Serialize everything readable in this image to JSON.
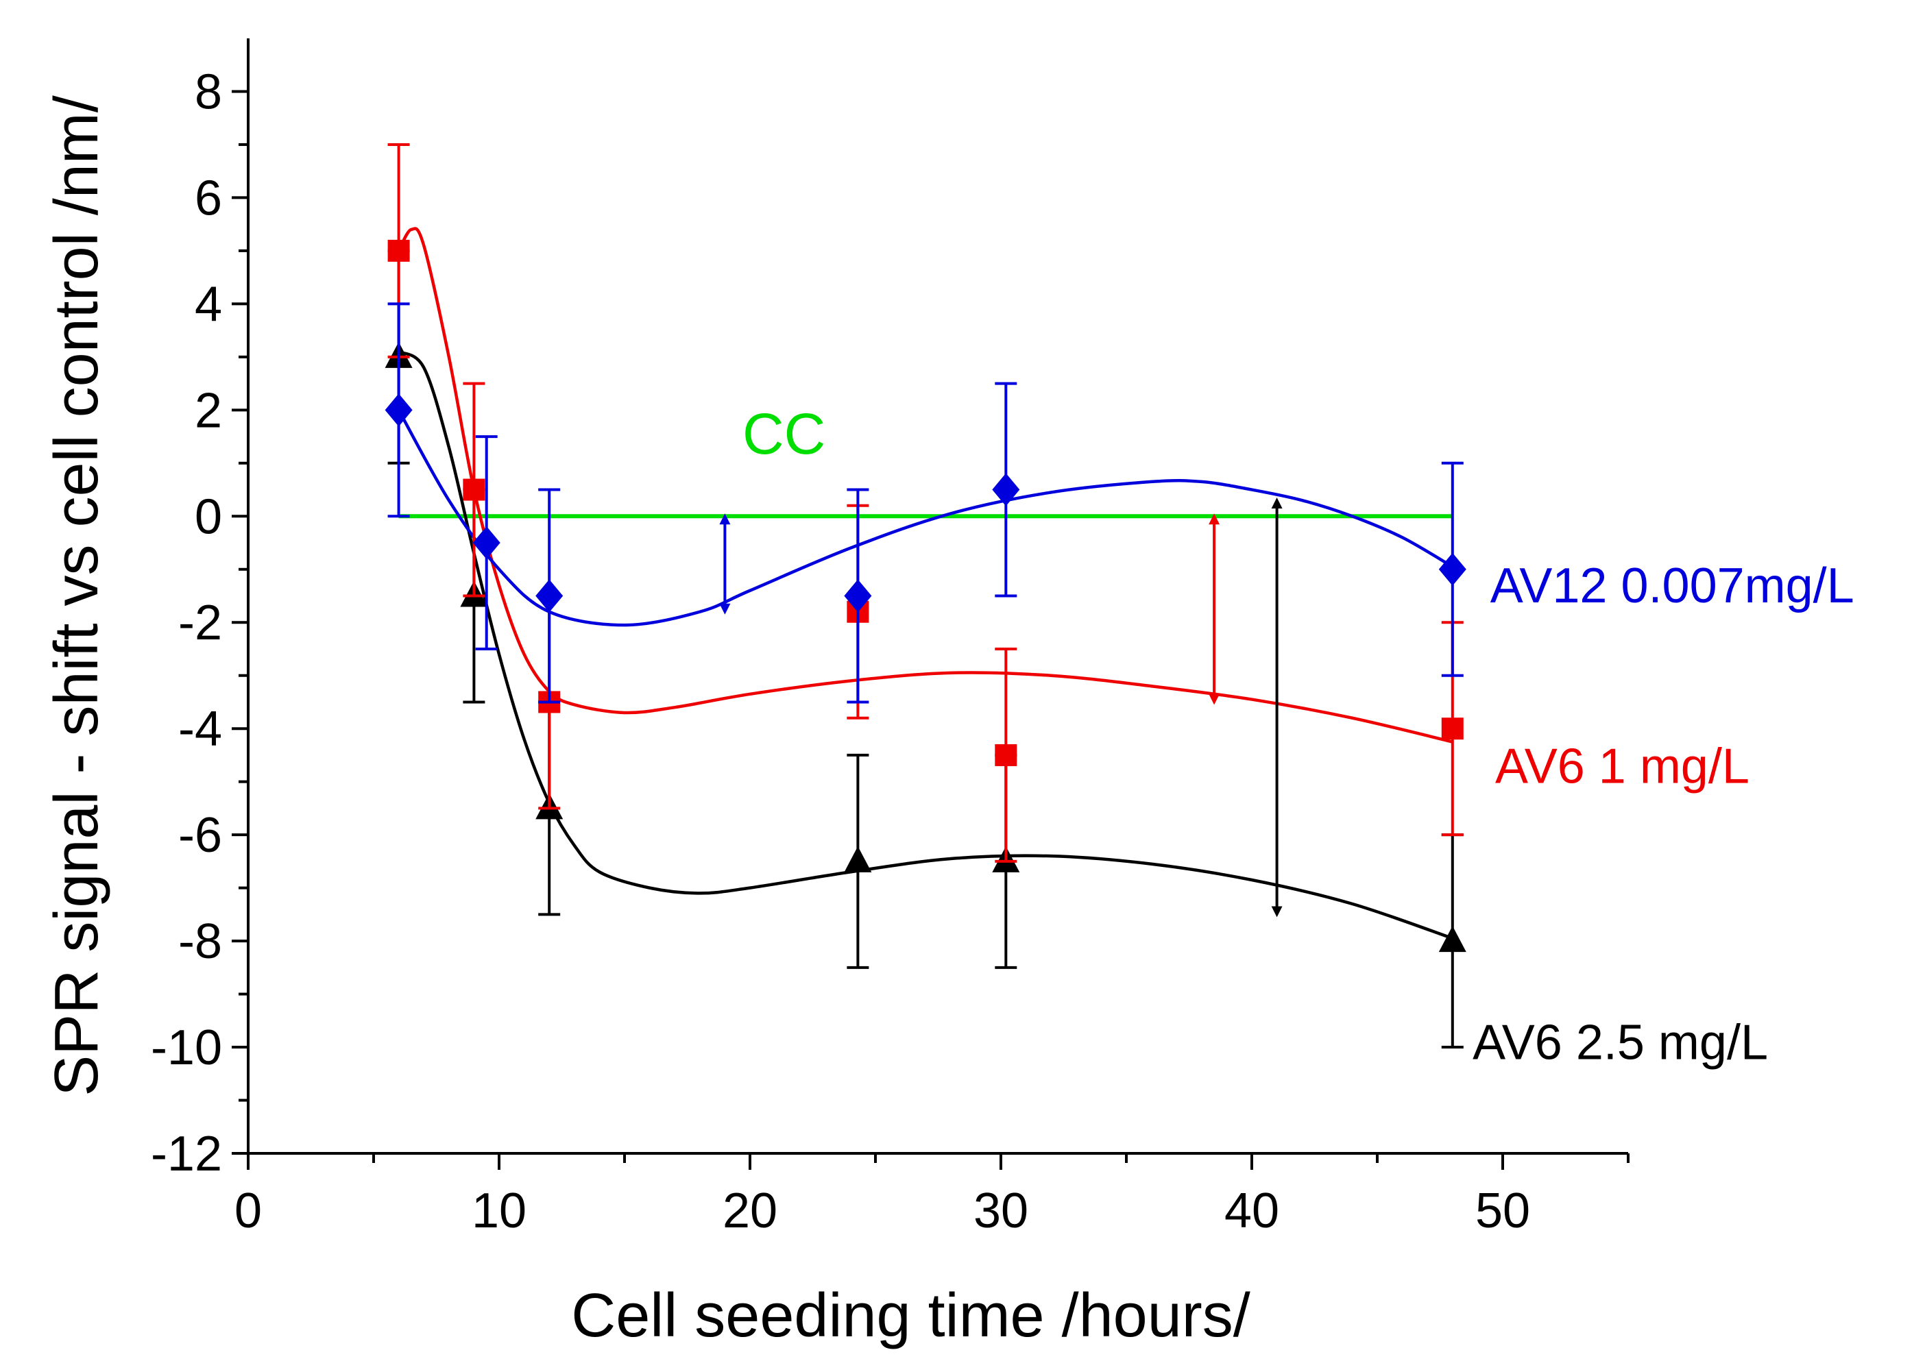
{
  "chart_data": {
    "type": "scatter",
    "xlabel": "Cell seeding time /hours/",
    "ylabel": "SPR signal - shift vs cell control /nm/",
    "xlim": [
      0,
      55
    ],
    "ylim": [
      -12,
      9
    ],
    "x_ticks": [
      0,
      10,
      20,
      30,
      40,
      50
    ],
    "y_ticks": [
      8,
      6,
      4,
      2,
      0,
      -2,
      -4,
      -6,
      -8,
      -10,
      -12
    ],
    "grid": false,
    "series": [
      {
        "name": "AV12 0.007mg/L",
        "color": "#0000dd",
        "marker": "diamond",
        "points": [
          {
            "x": 6,
            "y": 2,
            "err_low": 0,
            "err_high": 4
          },
          {
            "x": 9.5,
            "y": -0.5,
            "err_low": -2.5,
            "err_high": 1.5
          },
          {
            "x": 12,
            "y": -1.5,
            "err_low": -3.5,
            "err_high": 0.5
          },
          {
            "x": 24.3,
            "y": -1.5,
            "err_low": -3.5,
            "err_high": 0.5
          },
          {
            "x": 30.2,
            "y": 0.5,
            "err_low": -1.5,
            "err_high": 2.5
          },
          {
            "x": 48,
            "y": -1,
            "err_low": -3,
            "err_high": 1
          }
        ],
        "fit": [
          [
            6,
            2
          ],
          [
            8,
            0.3
          ],
          [
            10,
            -1
          ],
          [
            12,
            -1.8
          ],
          [
            15,
            -2.05
          ],
          [
            18,
            -1.8
          ],
          [
            20,
            -1.4
          ],
          [
            24,
            -0.6
          ],
          [
            28,
            0.05
          ],
          [
            32,
            0.45
          ],
          [
            36,
            0.65
          ],
          [
            38,
            0.65
          ],
          [
            40,
            0.5
          ],
          [
            42,
            0.3
          ],
          [
            44,
            0
          ],
          [
            46,
            -0.4
          ],
          [
            48,
            -0.95
          ]
        ]
      },
      {
        "name": "AV6 1 mg/L",
        "color": "#ee0000",
        "marker": "square",
        "points": [
          {
            "x": 6,
            "y": 5,
            "err_low": 3,
            "err_high": 7
          },
          {
            "x": 9,
            "y": 0.5,
            "err_low": -1.5,
            "err_high": 2.5
          },
          {
            "x": 12,
            "y": -3.5,
            "err_low": -5.5,
            "err_high": -1.5
          },
          {
            "x": 24.3,
            "y": -1.8,
            "err_low": -3.8,
            "err_high": 0.2
          },
          {
            "x": 30.2,
            "y": -4.5,
            "err_low": -6.5,
            "err_high": -2.5
          },
          {
            "x": 48,
            "y": -4,
            "err_low": -6,
            "err_high": -2
          }
        ],
        "fit": [
          [
            6,
            5
          ],
          [
            6.5,
            5.4
          ],
          [
            7,
            5.1
          ],
          [
            8,
            3
          ],
          [
            9,
            0.5
          ],
          [
            10,
            -1.3
          ],
          [
            11,
            -2.6
          ],
          [
            12,
            -3.3
          ],
          [
            13,
            -3.55
          ],
          [
            15,
            -3.7
          ],
          [
            17,
            -3.6
          ],
          [
            20,
            -3.35
          ],
          [
            24,
            -3.1
          ],
          [
            28,
            -2.95
          ],
          [
            32,
            -3
          ],
          [
            36,
            -3.2
          ],
          [
            40,
            -3.45
          ],
          [
            44,
            -3.8
          ],
          [
            48,
            -4.25
          ]
        ]
      },
      {
        "name": "AV6 2.5 mg/L",
        "color": "#000000",
        "marker": "triangle",
        "points": [
          {
            "x": 6,
            "y": 3,
            "err_low": 1,
            "err_high": 5
          },
          {
            "x": 9,
            "y": -1.5,
            "err_low": -3.5,
            "err_high": 0.5
          },
          {
            "x": 12,
            "y": -5.5,
            "err_low": -7.5,
            "err_high": -3.5
          },
          {
            "x": 24.3,
            "y": -6.5,
            "err_low": -8.5,
            "err_high": -4.5
          },
          {
            "x": 30.2,
            "y": -6.5,
            "err_low": -8.5,
            "err_high": -4.5
          },
          {
            "x": 48,
            "y": -8,
            "err_low": -10,
            "err_high": -6
          }
        ],
        "fit": [
          [
            6,
            3.1
          ],
          [
            7,
            2.8
          ],
          [
            8,
            1.3
          ],
          [
            9,
            -0.7
          ],
          [
            10,
            -2.6
          ],
          [
            11,
            -4.2
          ],
          [
            12,
            -5.4
          ],
          [
            13,
            -6.2
          ],
          [
            14,
            -6.7
          ],
          [
            16,
            -7.0
          ],
          [
            18,
            -7.1
          ],
          [
            20,
            -7.0
          ],
          [
            24,
            -6.7
          ],
          [
            28,
            -6.45
          ],
          [
            32,
            -6.4
          ],
          [
            36,
            -6.55
          ],
          [
            40,
            -6.85
          ],
          [
            44,
            -7.3
          ],
          [
            48,
            -7.95
          ]
        ]
      },
      {
        "name": "CC",
        "color": "#00dd00",
        "line": [
          [
            6,
            0
          ],
          [
            48,
            0
          ]
        ]
      }
    ],
    "arrows": [
      {
        "x": 19,
        "y_from": 0,
        "y_to": -1.8,
        "color": "#0000dd"
      },
      {
        "x": 38.5,
        "y_from": 0,
        "y_to": -3.5,
        "color": "#ee0000"
      },
      {
        "x": 41,
        "y_from": 0.3,
        "y_to": -7.5,
        "color": "#000000"
      }
    ],
    "annotations": [
      {
        "text": "CC",
        "x": 19.7,
        "y": 1.5,
        "color": "#00dd00"
      },
      {
        "text": "AV12 0.007mg/L",
        "x": 49.5,
        "y": -1.3,
        "color": "#0000dd"
      },
      {
        "text": "AV6 1 mg/L",
        "x": 49.7,
        "y": -4.7,
        "color": "#ee0000"
      },
      {
        "text": "AV6 2.5 mg/L",
        "x": 48.8,
        "y": -9.9,
        "color": "#000000"
      }
    ]
  }
}
